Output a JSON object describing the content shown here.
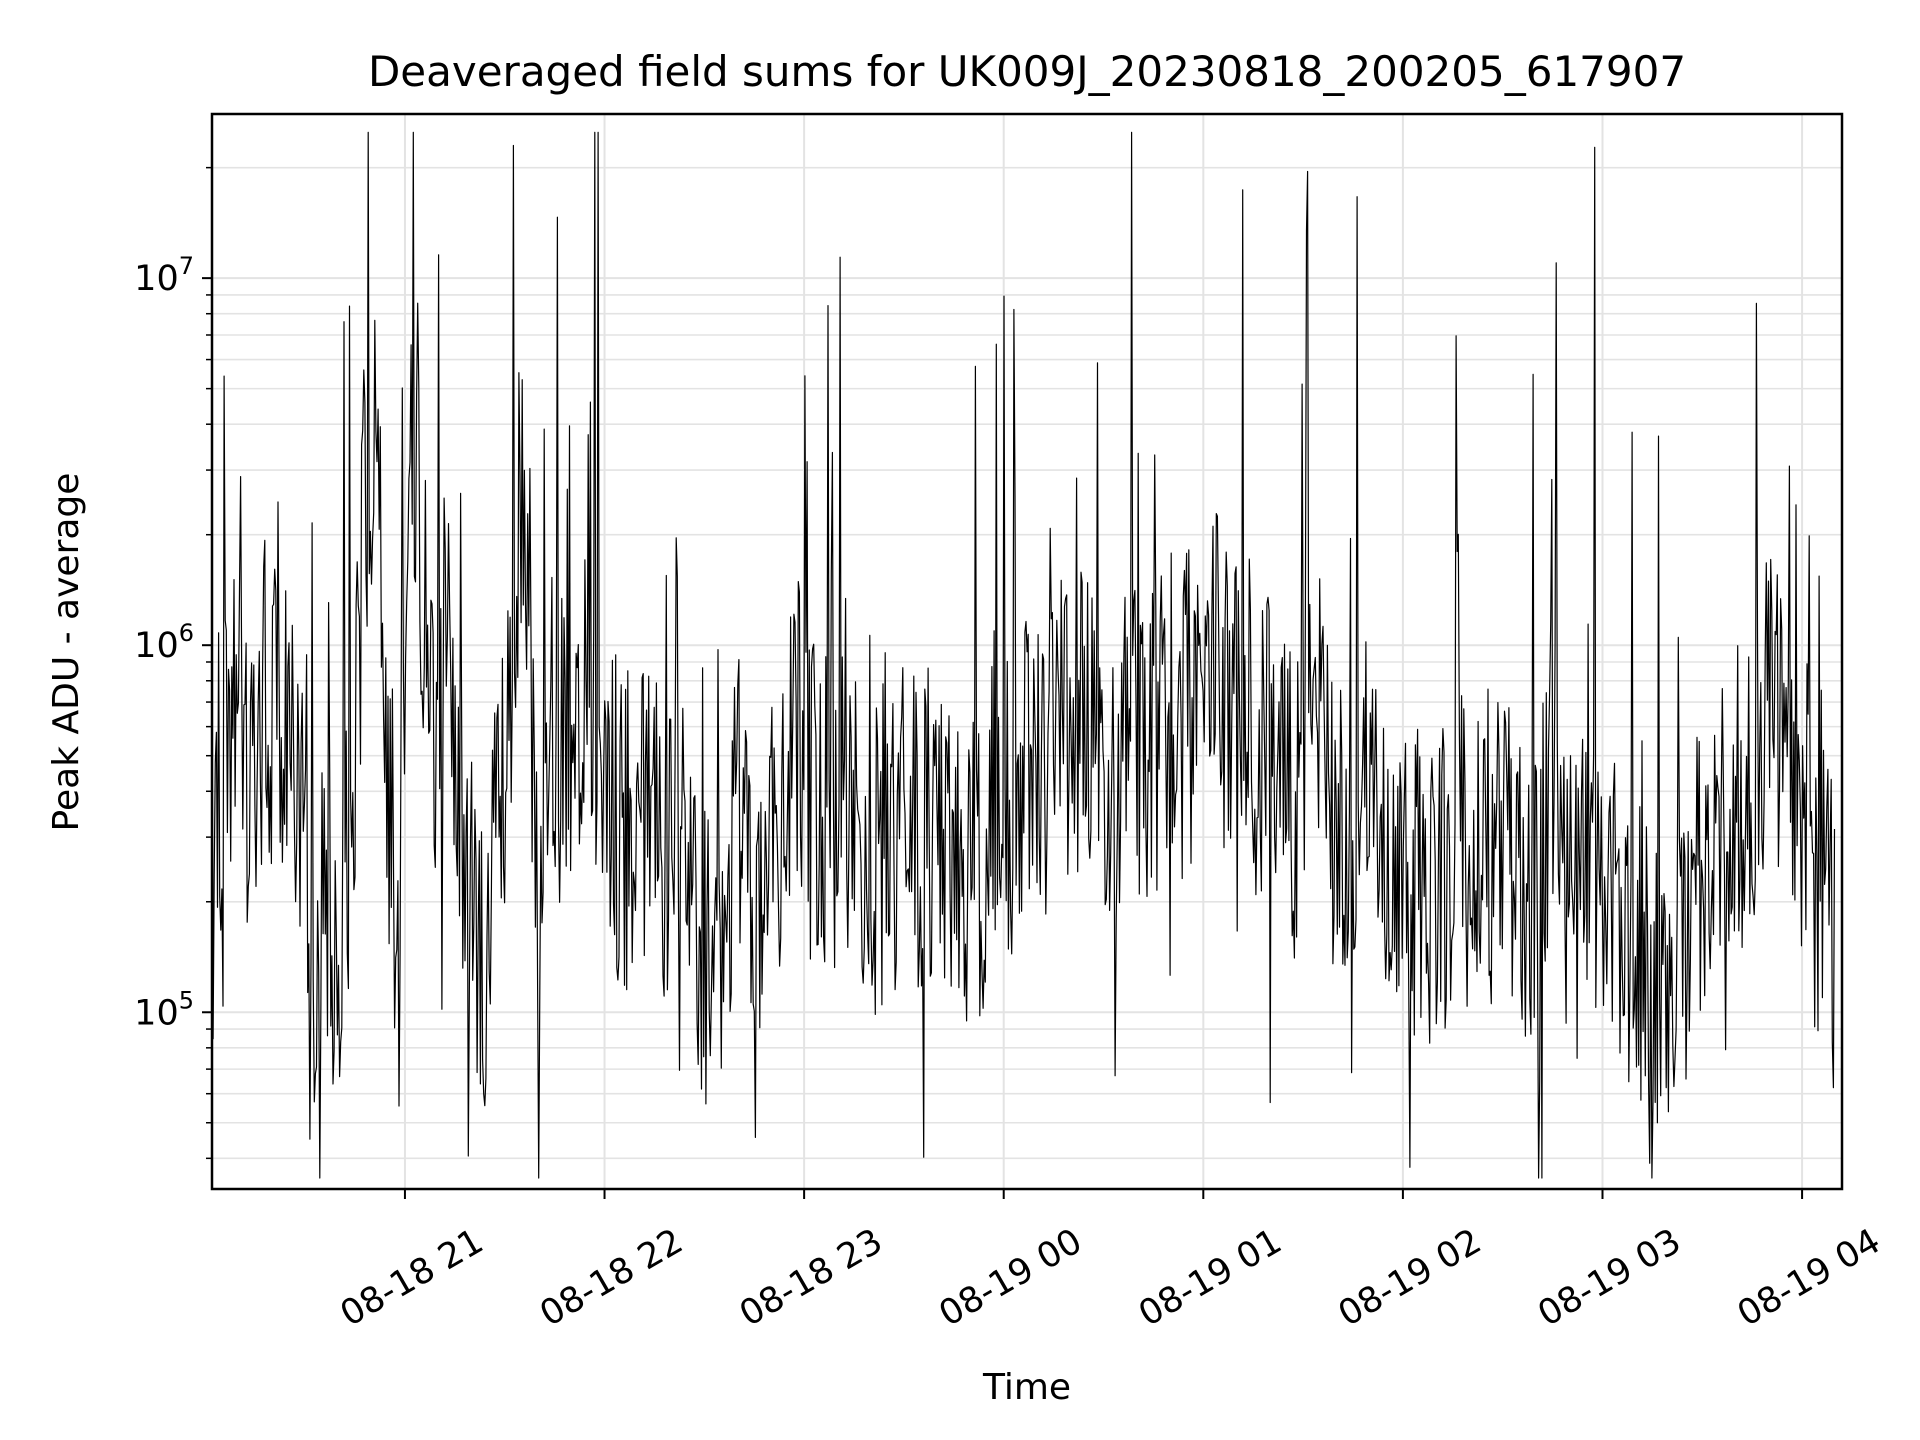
{
  "chart_data": {
    "type": "line",
    "title": "Deaveraged field sums for UK009J_20230818_200205_617907",
    "xlabel": "Time",
    "ylabel": "Peak ADU - average",
    "x_axis": {
      "kind": "time",
      "range": [
        "08-18 20:02",
        "08-19 04:12"
      ],
      "ticks": [
        {
          "value": "08-18 21:00",
          "label": "08-18 21"
        },
        {
          "value": "08-18 22:00",
          "label": "08-18 22"
        },
        {
          "value": "08-18 23:00",
          "label": "08-18 23"
        },
        {
          "value": "08-19 00:00",
          "label": "08-19 00"
        },
        {
          "value": "08-19 01:00",
          "label": "08-19 01"
        },
        {
          "value": "08-19 02:00",
          "label": "08-19 02"
        },
        {
          "value": "08-19 03:00",
          "label": "08-19 03"
        },
        {
          "value": "08-19 04:00",
          "label": "08-19 04"
        }
      ]
    },
    "y_axis": {
      "scale": "log",
      "range": [
        33000,
        28000000
      ],
      "ticks": [
        {
          "value": 100000,
          "base": "10",
          "exp": "5"
        },
        {
          "value": 1000000,
          "base": "10",
          "exp": "6"
        },
        {
          "value": 10000000,
          "base": "10",
          "exp": "7"
        }
      ]
    },
    "grid": true,
    "legend": "none",
    "line_color": "#000000",
    "series": [
      {
        "x": [
          "08-18 20:02",
          "08-18 20:04",
          "08-18 20:08",
          "08-18 20:12",
          "08-18 20:18",
          "08-18 20:25",
          "08-18 20:30",
          "08-18 20:33",
          "08-18 20:36",
          "08-18 20:40",
          "08-18 20:44",
          "08-18 20:48",
          "08-18 20:52",
          "08-18 20:53",
          "08-18 20:55",
          "08-18 20:58",
          "08-18 21:02",
          "08-18 21:08",
          "08-18 21:12",
          "08-18 21:18",
          "08-18 21:24",
          "08-18 21:30",
          "08-18 21:35",
          "08-18 21:40",
          "08-18 21:45",
          "08-18 21:55",
          "08-18 22:05",
          "08-18 22:15",
          "08-18 22:25",
          "08-18 22:35",
          "08-18 22:40",
          "08-18 22:45",
          "08-18 22:50",
          "08-18 22:53",
          "08-18 22:58",
          "08-18 23:05",
          "08-18 23:15",
          "08-18 23:20",
          "08-18 23:30",
          "08-18 23:40",
          "08-18 23:50",
          "08-19 00:00",
          "08-19 00:10",
          "08-19 00:18",
          "08-19 00:25",
          "08-19 00:35",
          "08-19 00:45",
          "08-19 00:55",
          "08-19 01:02",
          "08-19 01:10",
          "08-19 01:20",
          "08-19 01:28",
          "08-19 01:32",
          "08-19 01:40",
          "08-19 01:50",
          "08-19 02:00",
          "08-19 02:10",
          "08-19 02:20",
          "08-19 02:30",
          "08-19 02:40",
          "08-19 02:45",
          "08-19 02:50",
          "08-19 03:00",
          "08-19 03:10",
          "08-19 03:18",
          "08-19 03:22",
          "08-19 03:30",
          "08-19 03:38",
          "08-19 03:45",
          "08-19 03:50",
          "08-19 03:55",
          "08-19 04:02",
          "08-19 04:06",
          "08-19 04:10"
        ],
        "y": [
          650000,
          400000,
          600000,
          450000,
          700000,
          500000,
          250000,
          150000,
          200000,
          130000,
          300000,
          2500000,
          6000000,
          1500000,
          350000,
          200000,
          5000000,
          600000,
          1000000,
          250000,
          150000,
          400000,
          3000000,
          200000,
          500000,
          700000,
          300000,
          400000,
          160000,
          120000,
          500000,
          110000,
          400000,
          300000,
          600000,
          400000,
          300000,
          250000,
          350000,
          300000,
          250000,
          350000,
          450000,
          600000,
          550000,
          500000,
          600000,
          650000,
          900000,
          700000,
          500000,
          350000,
          800000,
          300000,
          400000,
          250000,
          200000,
          300000,
          250000,
          200000,
          450000,
          180000,
          200000,
          150000,
          100000,
          90000,
          300000,
          350000,
          450000,
          800000,
          600000,
          300000,
          200000,
          160000
        ]
      }
    ]
  }
}
